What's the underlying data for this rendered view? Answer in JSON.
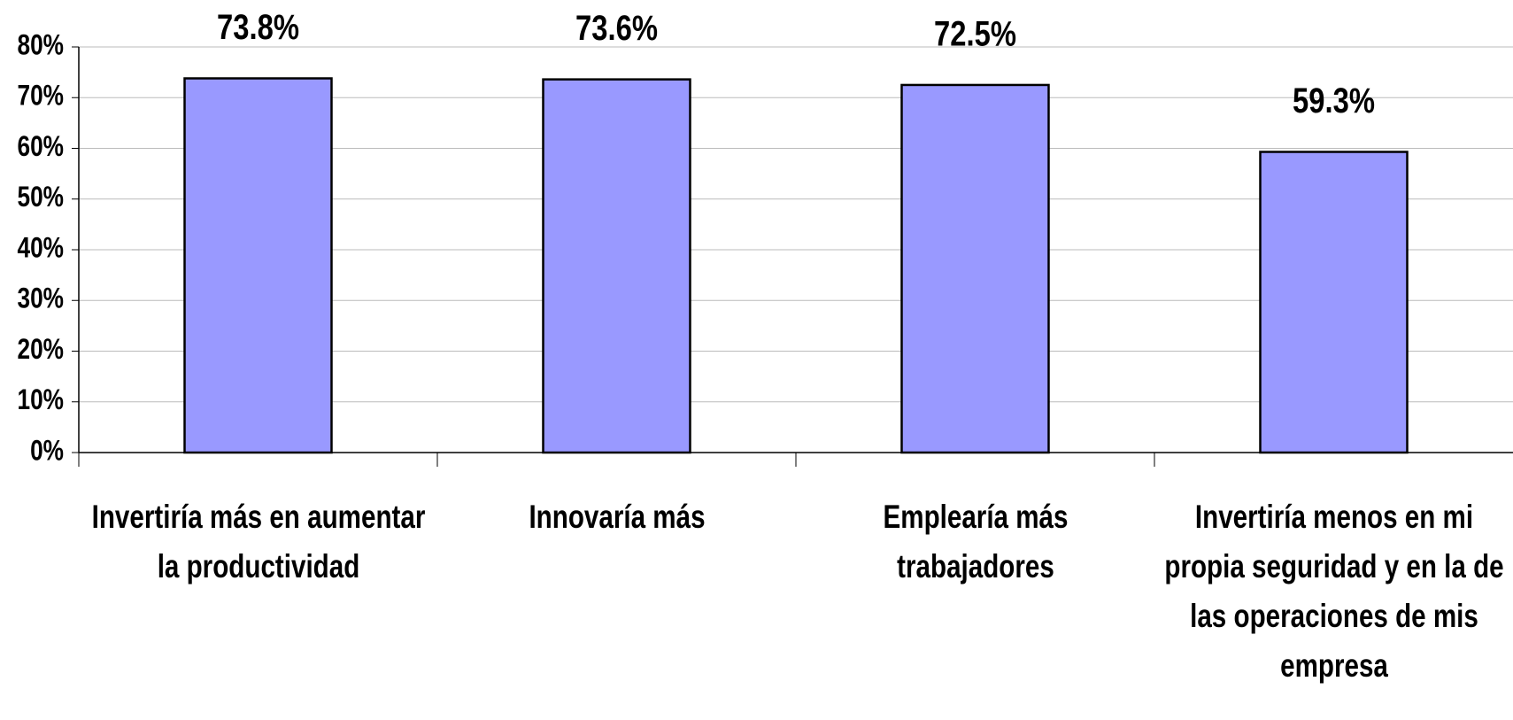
{
  "chart_data": {
    "type": "bar",
    "categories": [
      "Invertiría más en aumentar la productividad",
      "Innovaría más",
      "Emplearía más trabajadores",
      "Invertiría menos en mi propia seguridad y en la de las operaciones de mis empresa"
    ],
    "values": [
      73.8,
      73.6,
      72.5,
      59.3
    ],
    "value_labels": [
      "73.8%",
      "73.6%",
      "72.5%",
      "59.3%"
    ],
    "color": "#9999ff",
    "ylim": [
      0,
      80
    ],
    "yticks": [
      {
        "value": 0,
        "label": "0%"
      },
      {
        "value": 10,
        "label": "10%"
      },
      {
        "value": 20,
        "label": "20%"
      },
      {
        "value": 30,
        "label": "30%"
      },
      {
        "value": 40,
        "label": "40%"
      },
      {
        "value": 50,
        "label": "50%"
      },
      {
        "value": 60,
        "label": "60%"
      },
      {
        "value": 70,
        "label": "70%"
      },
      {
        "value": 80,
        "label": "80%"
      }
    ],
    "grid": true
  }
}
